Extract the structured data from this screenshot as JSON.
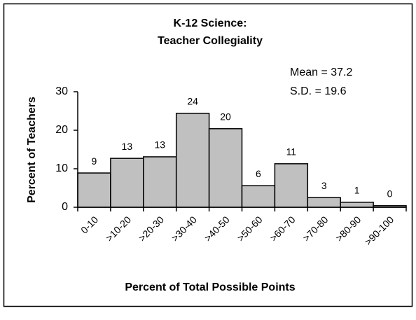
{
  "chart_data": {
    "type": "bar",
    "title": [
      "K-12 Science:",
      "Teacher Collegiality"
    ],
    "annotations": [
      "Mean = 37.2",
      "S.D. = 19.6"
    ],
    "x_label": "Percent of Total Possible Points",
    "y_label": "Percent of Teachers",
    "categories": [
      "0-10",
      ">10-20",
      ">20-30",
      ">30-40",
      ">40-50",
      ">50-60",
      ">60-70",
      ">70-80",
      ">80-90",
      ">90-100"
    ],
    "values": [
      8.9,
      12.7,
      13.1,
      24.4,
      20.4,
      5.6,
      11.3,
      2.5,
      1.3,
      0.4
    ],
    "value_labels": [
      "9",
      "13",
      "13",
      "24",
      "20",
      "6",
      "11",
      "3",
      "1",
      "0"
    ],
    "color": "#c0c0c0",
    "ylim": [
      0,
      30
    ],
    "yticks": [
      0,
      10,
      20,
      30
    ],
    "grid": false
  }
}
